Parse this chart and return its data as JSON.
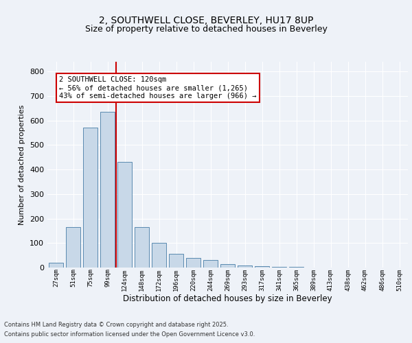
{
  "title1": "2, SOUTHWELL CLOSE, BEVERLEY, HU17 8UP",
  "title2": "Size of property relative to detached houses in Beverley",
  "xlabel": "Distribution of detached houses by size in Beverley",
  "ylabel": "Number of detached properties",
  "categories": [
    "27sqm",
    "51sqm",
    "75sqm",
    "99sqm",
    "124sqm",
    "148sqm",
    "172sqm",
    "196sqm",
    "220sqm",
    "244sqm",
    "269sqm",
    "293sqm",
    "317sqm",
    "341sqm",
    "365sqm",
    "389sqm",
    "413sqm",
    "438sqm",
    "462sqm",
    "486sqm",
    "510sqm"
  ],
  "values": [
    20,
    165,
    570,
    635,
    430,
    165,
    100,
    55,
    40,
    30,
    15,
    8,
    5,
    3,
    2,
    1,
    1,
    0.5,
    0.3,
    0.2,
    0.1
  ],
  "bar_color": "#c8d8e8",
  "bar_edge_color": "#5a8ab0",
  "vline_x_index": 4,
  "vline_color": "#cc0000",
  "annotation_text": "2 SOUTHWELL CLOSE: 120sqm\n← 56% of detached houses are smaller (1,265)\n43% of semi-detached houses are larger (966) →",
  "annotation_box_color": "#ffffff",
  "annotation_box_edge_color": "#cc0000",
  "ylim": [
    0,
    840
  ],
  "yticks": [
    0,
    100,
    200,
    300,
    400,
    500,
    600,
    700,
    800
  ],
  "background_color": "#eef2f8",
  "grid_color": "#ffffff",
  "footer1": "Contains HM Land Registry data © Crown copyright and database right 2025.",
  "footer2": "Contains public sector information licensed under the Open Government Licence v3.0."
}
